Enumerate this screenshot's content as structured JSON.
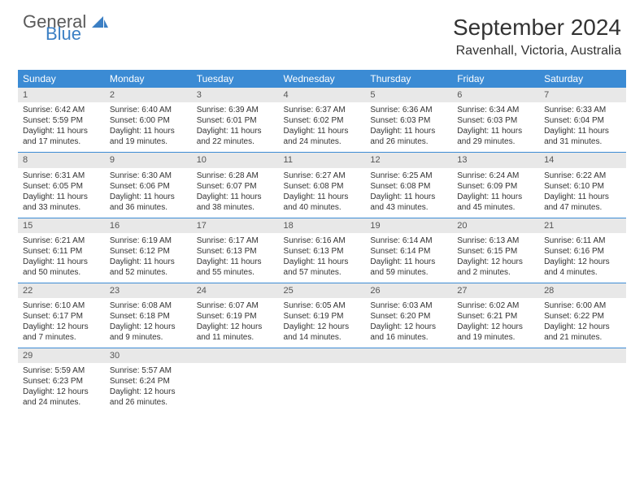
{
  "logo": {
    "text1": "General",
    "text2": "Blue"
  },
  "title": "September 2024",
  "location": "Ravenhall, Victoria, Australia",
  "colors": {
    "header_bg": "#3b8bd4",
    "header_text": "#ffffff",
    "daynum_bg": "#e8e8e8",
    "row_border": "#3b8bd4",
    "logo_blue": "#3b7fc4",
    "logo_gray": "#5a5a5a"
  },
  "weekdays": [
    "Sunday",
    "Monday",
    "Tuesday",
    "Wednesday",
    "Thursday",
    "Friday",
    "Saturday"
  ],
  "layout": {
    "first_day_column": 0,
    "num_days": 30,
    "rows": 5
  },
  "days": [
    {
      "n": 1,
      "sunrise": "6:42 AM",
      "sunset": "5:59 PM",
      "daylight": "11 hours and 17 minutes."
    },
    {
      "n": 2,
      "sunrise": "6:40 AM",
      "sunset": "6:00 PM",
      "daylight": "11 hours and 19 minutes."
    },
    {
      "n": 3,
      "sunrise": "6:39 AM",
      "sunset": "6:01 PM",
      "daylight": "11 hours and 22 minutes."
    },
    {
      "n": 4,
      "sunrise": "6:37 AM",
      "sunset": "6:02 PM",
      "daylight": "11 hours and 24 minutes."
    },
    {
      "n": 5,
      "sunrise": "6:36 AM",
      "sunset": "6:03 PM",
      "daylight": "11 hours and 26 minutes."
    },
    {
      "n": 6,
      "sunrise": "6:34 AM",
      "sunset": "6:03 PM",
      "daylight": "11 hours and 29 minutes."
    },
    {
      "n": 7,
      "sunrise": "6:33 AM",
      "sunset": "6:04 PM",
      "daylight": "11 hours and 31 minutes."
    },
    {
      "n": 8,
      "sunrise": "6:31 AM",
      "sunset": "6:05 PM",
      "daylight": "11 hours and 33 minutes."
    },
    {
      "n": 9,
      "sunrise": "6:30 AM",
      "sunset": "6:06 PM",
      "daylight": "11 hours and 36 minutes."
    },
    {
      "n": 10,
      "sunrise": "6:28 AM",
      "sunset": "6:07 PM",
      "daylight": "11 hours and 38 minutes."
    },
    {
      "n": 11,
      "sunrise": "6:27 AM",
      "sunset": "6:08 PM",
      "daylight": "11 hours and 40 minutes."
    },
    {
      "n": 12,
      "sunrise": "6:25 AM",
      "sunset": "6:08 PM",
      "daylight": "11 hours and 43 minutes."
    },
    {
      "n": 13,
      "sunrise": "6:24 AM",
      "sunset": "6:09 PM",
      "daylight": "11 hours and 45 minutes."
    },
    {
      "n": 14,
      "sunrise": "6:22 AM",
      "sunset": "6:10 PM",
      "daylight": "11 hours and 47 minutes."
    },
    {
      "n": 15,
      "sunrise": "6:21 AM",
      "sunset": "6:11 PM",
      "daylight": "11 hours and 50 minutes."
    },
    {
      "n": 16,
      "sunrise": "6:19 AM",
      "sunset": "6:12 PM",
      "daylight": "11 hours and 52 minutes."
    },
    {
      "n": 17,
      "sunrise": "6:17 AM",
      "sunset": "6:13 PM",
      "daylight": "11 hours and 55 minutes."
    },
    {
      "n": 18,
      "sunrise": "6:16 AM",
      "sunset": "6:13 PM",
      "daylight": "11 hours and 57 minutes."
    },
    {
      "n": 19,
      "sunrise": "6:14 AM",
      "sunset": "6:14 PM",
      "daylight": "11 hours and 59 minutes."
    },
    {
      "n": 20,
      "sunrise": "6:13 AM",
      "sunset": "6:15 PM",
      "daylight": "12 hours and 2 minutes."
    },
    {
      "n": 21,
      "sunrise": "6:11 AM",
      "sunset": "6:16 PM",
      "daylight": "12 hours and 4 minutes."
    },
    {
      "n": 22,
      "sunrise": "6:10 AM",
      "sunset": "6:17 PM",
      "daylight": "12 hours and 7 minutes."
    },
    {
      "n": 23,
      "sunrise": "6:08 AM",
      "sunset": "6:18 PM",
      "daylight": "12 hours and 9 minutes."
    },
    {
      "n": 24,
      "sunrise": "6:07 AM",
      "sunset": "6:19 PM",
      "daylight": "12 hours and 11 minutes."
    },
    {
      "n": 25,
      "sunrise": "6:05 AM",
      "sunset": "6:19 PM",
      "daylight": "12 hours and 14 minutes."
    },
    {
      "n": 26,
      "sunrise": "6:03 AM",
      "sunset": "6:20 PM",
      "daylight": "12 hours and 16 minutes."
    },
    {
      "n": 27,
      "sunrise": "6:02 AM",
      "sunset": "6:21 PM",
      "daylight": "12 hours and 19 minutes."
    },
    {
      "n": 28,
      "sunrise": "6:00 AM",
      "sunset": "6:22 PM",
      "daylight": "12 hours and 21 minutes."
    },
    {
      "n": 29,
      "sunrise": "5:59 AM",
      "sunset": "6:23 PM",
      "daylight": "12 hours and 24 minutes."
    },
    {
      "n": 30,
      "sunrise": "5:57 AM",
      "sunset": "6:24 PM",
      "daylight": "12 hours and 26 minutes."
    }
  ],
  "labels": {
    "sunrise": "Sunrise:",
    "sunset": "Sunset:",
    "daylight": "Daylight:"
  }
}
